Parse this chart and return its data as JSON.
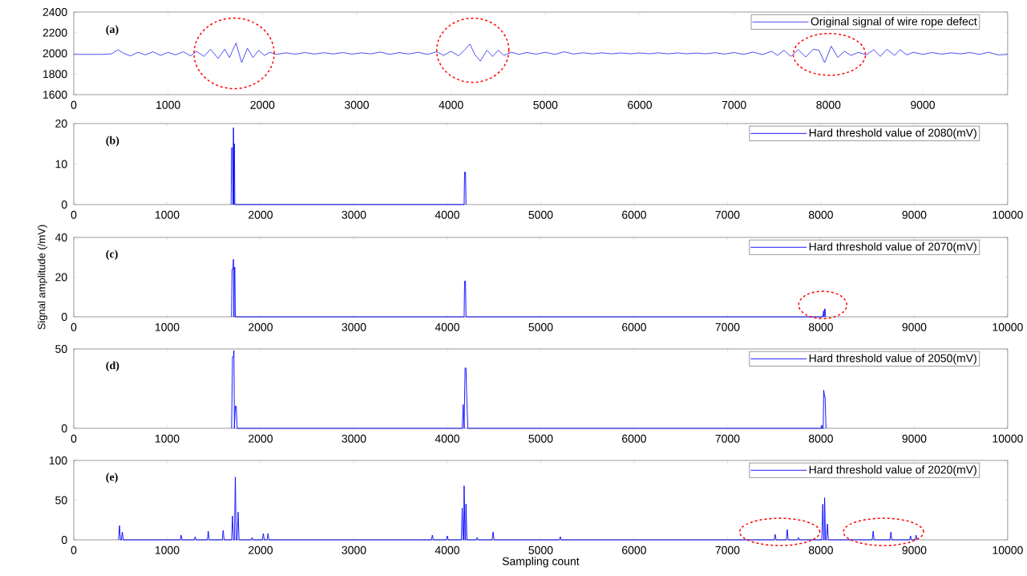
{
  "chart_data": [
    {
      "type": "line",
      "annotations": [
        "(a)"
      ],
      "xlim": [
        0,
        9900
      ],
      "xticks": [
        0,
        1000,
        2000,
        3000,
        4000,
        5000,
        6000,
        7000,
        8000,
        9000
      ],
      "ylim": [
        1600,
        2400
      ],
      "yticks": [
        1600,
        1800,
        2000,
        2200,
        2400
      ],
      "legend": "top right",
      "series": [
        {
          "name": "Original signal of wire rope defect",
          "color": "#3a3af0",
          "x": [
            0,
            300,
            400,
            470,
            530,
            600,
            680,
            760,
            840,
            920,
            1000,
            1080,
            1160,
            1240,
            1300,
            1380,
            1450,
            1530,
            1600,
            1650,
            1720,
            1780,
            1840,
            1900,
            1960,
            2020,
            2080,
            2150,
            2250,
            2350,
            2450,
            2550,
            2650,
            2750,
            2850,
            2950,
            3050,
            3150,
            3250,
            3350,
            3450,
            3550,
            3650,
            3750,
            3850,
            3920,
            4000,
            4080,
            4150,
            4200,
            4250,
            4310,
            4380,
            4440,
            4500,
            4560,
            4640,
            4720,
            4800,
            4900,
            5000,
            5100,
            5200,
            5300,
            5400,
            5500,
            5600,
            5700,
            5800,
            5900,
            6000,
            6100,
            6200,
            6300,
            6400,
            6500,
            6600,
            6700,
            6800,
            6900,
            7000,
            7100,
            7200,
            7300,
            7400,
            7460,
            7530,
            7600,
            7680,
            7760,
            7840,
            7900,
            7960,
            8030,
            8100,
            8170,
            8240,
            8320,
            8400,
            8480,
            8550,
            8620,
            8700,
            8760,
            8830,
            8900,
            9000,
            9100,
            9200,
            9300,
            9400,
            9500,
            9600,
            9700,
            9800,
            9900
          ],
          "values": [
            1990,
            1990,
            1995,
            2035,
            2000,
            1975,
            2010,
            1985,
            2015,
            1980,
            2010,
            1985,
            2015,
            1975,
            2020,
            1970,
            2040,
            1950,
            2040,
            1960,
            2100,
            1910,
            2050,
            1960,
            2030,
            1980,
            2010,
            1990,
            2005,
            1992,
            2008,
            1993,
            2006,
            1994,
            2008,
            1992,
            2005,
            1995,
            2012,
            1990,
            2007,
            1994,
            2010,
            1990,
            2015,
            1980,
            2020,
            1975,
            2040,
            2090,
            1990,
            1925,
            2030,
            1970,
            2030,
            1980,
            2010,
            1990,
            2008,
            1992,
            2010,
            1990,
            2015,
            1993,
            2006,
            1995,
            2005,
            1995,
            2004,
            1996,
            2004,
            1996,
            2005,
            1995,
            2004,
            1996,
            2003,
            1996,
            2006,
            1993,
            2008,
            1990,
            2012,
            1988,
            2020,
            1980,
            2030,
            1970,
            2035,
            1965,
            2040,
            2030,
            1910,
            2070,
            1960,
            2020,
            1980,
            2010,
            1985,
            2035,
            1970,
            2040,
            1980,
            2035,
            1985,
            2010,
            1990,
            2008,
            1992,
            2005,
            1995,
            2008,
            1990,
            2010,
            1985,
            1990
          ]
        }
      ]
    },
    {
      "type": "line",
      "annotations": [
        "(b)"
      ],
      "xlim": [
        0,
        10000
      ],
      "xticks": [
        0,
        1000,
        2000,
        3000,
        4000,
        5000,
        6000,
        7000,
        8000,
        9000,
        10000
      ],
      "ylim": [
        0,
        20
      ],
      "yticks": [
        0,
        10,
        20
      ],
      "legend": "top right",
      "series": [
        {
          "name": "Hard threshold value of 2080(mV)",
          "color": "#0000ff",
          "x": [
            1685,
            1690,
            1700,
            1705,
            1710,
            1715,
            1720,
            1725,
            1730,
            4180,
            4185,
            4195,
            4200
          ],
          "values": [
            0,
            14,
            14,
            0,
            19,
            0,
            15,
            0,
            0,
            0,
            8,
            8,
            0
          ]
        }
      ]
    },
    {
      "type": "line",
      "annotations": [
        "(c)"
      ],
      "ylabel": "Signal amplitude  (/mV)",
      "xlim": [
        0,
        10000
      ],
      "xticks": [
        0,
        1000,
        2000,
        3000,
        4000,
        5000,
        6000,
        7000,
        8000,
        9000,
        10000
      ],
      "ylim": [
        0,
        40
      ],
      "yticks": [
        0,
        20,
        40
      ],
      "legend": "top right",
      "series": [
        {
          "name": "Hard threshold value of 2070(mV)",
          "color": "#0000ff",
          "x": [
            1690,
            1695,
            1705,
            1710,
            1715,
            1720,
            1725,
            1730,
            4180,
            4185,
            4195,
            4200,
            8020,
            8030,
            8035,
            8040,
            8045,
            8050
          ],
          "values": [
            0,
            24,
            24,
            29,
            0,
            25,
            25,
            0,
            0,
            18,
            18,
            0,
            0,
            3,
            0,
            4,
            4,
            0
          ]
        }
      ]
    },
    {
      "type": "line",
      "annotations": [
        "(d)"
      ],
      "xlim": [
        0,
        10000
      ],
      "xticks": [
        0,
        1000,
        2000,
        3000,
        4000,
        5000,
        6000,
        7000,
        8000,
        9000,
        10000
      ],
      "ylim": [
        0,
        50
      ],
      "yticks": [
        0,
        50
      ],
      "legend": "top right",
      "series": [
        {
          "name": "Hard threshold value of 2050(mV)",
          "color": "#0000ff",
          "x": [
            1690,
            1700,
            1710,
            1715,
            1720,
            1730,
            1740,
            1750,
            4160,
            4170,
            4180,
            4190,
            4200,
            4210,
            4220,
            8005,
            8010,
            8015,
            8025,
            8030,
            8040,
            8045,
            8055
          ],
          "values": [
            0,
            45,
            45,
            49,
            0,
            14,
            14,
            0,
            0,
            15,
            0,
            38,
            38,
            16,
            0,
            0,
            2,
            0,
            0,
            24,
            20,
            20,
            0
          ]
        }
      ]
    },
    {
      "type": "line",
      "annotations": [
        "(e)"
      ],
      "xlabel": "Sampling count",
      "xlim": [
        0,
        10000
      ],
      "xticks": [
        0,
        1000,
        2000,
        3000,
        4000,
        5000,
        6000,
        7000,
        8000,
        9000,
        10000
      ],
      "ylim": [
        0,
        100
      ],
      "yticks": [
        0,
        50,
        100
      ],
      "legend": "top right",
      "series": [
        {
          "name": "Hard threshold value of 2020(mV)",
          "color": "#0000ff",
          "x": [
            480,
            490,
            500,
            510,
            520,
            530,
            1140,
            1150,
            1160,
            1290,
            1300,
            1310,
            1430,
            1440,
            1450,
            1590,
            1600,
            1610,
            1690,
            1700,
            1710,
            1720,
            1730,
            1740,
            1750,
            1760,
            1770,
            1900,
            1910,
            1920,
            2020,
            2030,
            2040,
            2070,
            2080,
            2090,
            3830,
            3840,
            3850,
            3990,
            4000,
            4010,
            4150,
            4160,
            4170,
            4175,
            4180,
            4190,
            4195,
            4200,
            4210,
            4310,
            4320,
            4330,
            4480,
            4490,
            4500,
            5200,
            5210,
            5220,
            7500,
            7510,
            7520,
            7630,
            7640,
            7650,
            7750,
            7760,
            7770,
            8010,
            8020,
            8030,
            8035,
            8040,
            8050,
            8060,
            8070,
            8080,
            8550,
            8560,
            8570,
            8740,
            8750,
            8760,
            8950,
            8960,
            8970,
            9010,
            9020,
            9030
          ],
          "values": [
            0,
            18,
            0,
            0,
            10,
            0,
            0,
            6,
            0,
            0,
            4,
            0,
            0,
            11,
            0,
            0,
            12,
            0,
            0,
            30,
            0,
            0,
            79,
            0,
            0,
            35,
            0,
            0,
            3,
            0,
            0,
            8,
            0,
            0,
            8,
            0,
            0,
            6,
            0,
            0,
            5,
            0,
            0,
            40,
            0,
            0,
            68,
            0,
            0,
            45,
            0,
            0,
            3,
            0,
            0,
            10,
            0,
            0,
            4,
            0,
            0,
            7,
            0,
            0,
            13,
            0,
            0,
            3,
            0,
            0,
            45,
            0,
            0,
            53,
            0,
            0,
            20,
            0,
            0,
            11,
            0,
            0,
            10,
            0,
            0,
            5,
            0,
            0,
            6,
            0
          ]
        }
      ]
    }
  ]
}
